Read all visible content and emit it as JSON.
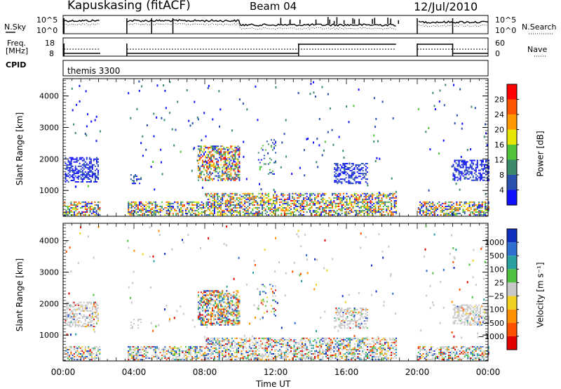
{
  "header": {
    "station": "Kapuskasing (fitACF)",
    "beam": "Beam 04",
    "date": "12/Jul/2010"
  },
  "top_panels": {
    "nsky_label": "N.Sky",
    "nsearch_label": "N.Search",
    "noise_ticks": [
      "10^5",
      "10^0"
    ],
    "freq_label_1": "Freq.",
    "freq_label_2": "[MHz]",
    "freq_ticks": [
      "18",
      "8"
    ],
    "nave_label": "Nave",
    "nave_ticks": [
      "60",
      "0"
    ],
    "cpid_label": "CPID",
    "cpid_value": "themis 3300"
  },
  "chart_data": [
    {
      "type": "heatmap",
      "name": "power",
      "ylabel": "Slant Range [km]",
      "ylim": [
        180,
        4550
      ],
      "y_ticks": [
        1000,
        2000,
        3000,
        4000
      ],
      "colorbar_label": "Power [dB]",
      "colorbar_ticks": [
        "4",
        "8",
        "12",
        "16",
        "20",
        "24",
        "28"
      ],
      "colorbar_colors": [
        "#1010ff",
        "#2a50b0",
        "#3c8a6a",
        "#52c23a",
        "#e6e600",
        "#ff9900",
        "#ff5500",
        "#ff0000"
      ]
    },
    {
      "type": "heatmap",
      "name": "velocity",
      "ylabel": "Slant Range [km]",
      "ylim": [
        180,
        4550
      ],
      "y_ticks": [
        1000,
        2000,
        3000,
        4000
      ],
      "xlabel": "Time UT",
      "x_ticks": [
        "00:00",
        "04:00",
        "08:00",
        "12:00",
        "16:00",
        "20:00",
        "00:00"
      ],
      "colorbar_label": "Velocity [m s⁻¹]",
      "colorbar_ticks": [
        "1000",
        "500",
        "100",
        "25",
        "−25",
        "−100",
        "−500",
        "−1000"
      ],
      "colorbar_colors": [
        "#1030c0",
        "#2f6fd0",
        "#2aa0a0",
        "#50c040",
        "#c8c8c8",
        "#f0d020",
        "#ff9000",
        "#ff5000",
        "#e00000"
      ]
    }
  ]
}
